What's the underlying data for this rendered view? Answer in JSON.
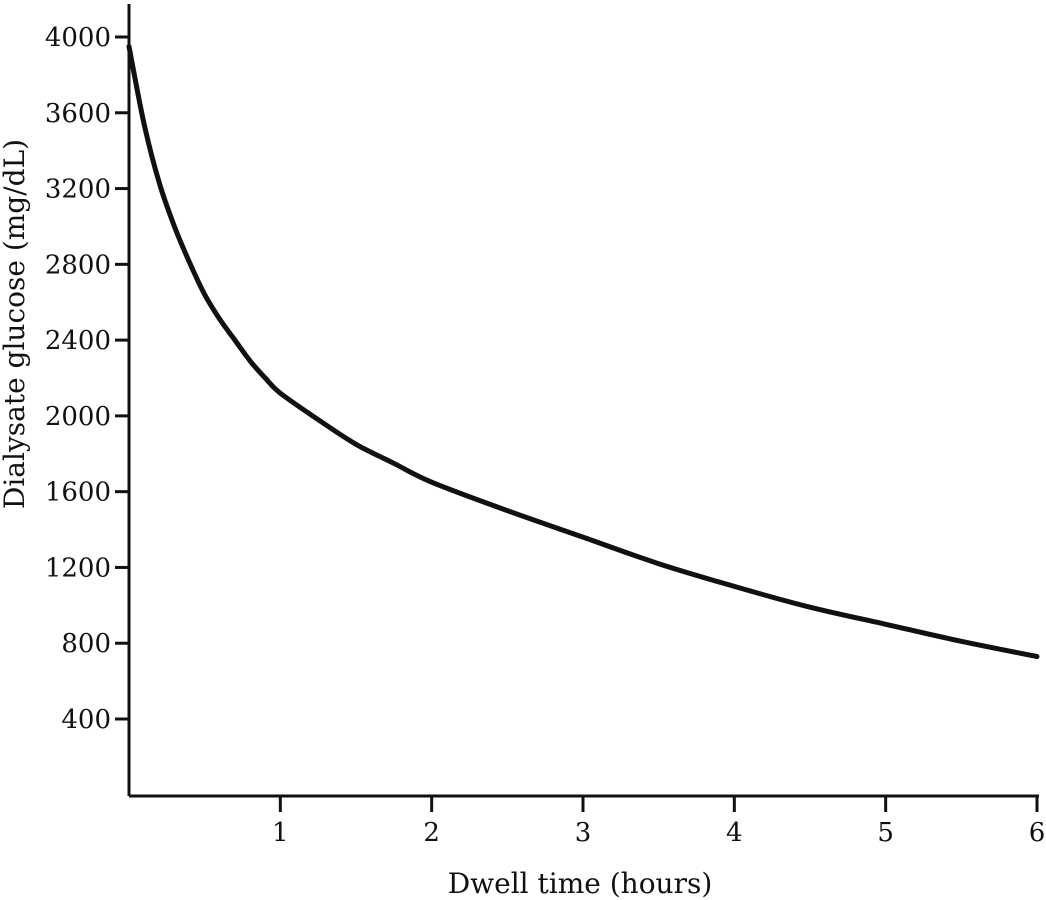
{
  "chart_data": {
    "type": "line",
    "title": "",
    "xlabel": "Dwell time (hours)",
    "ylabel": "Dialysate glucose (mg/dL)",
    "xlim": [
      0,
      6
    ],
    "ylim": [
      0,
      4200
    ],
    "xticks": [
      1,
      2,
      3,
      4,
      5,
      6
    ],
    "yticks": [
      400,
      800,
      1200,
      1600,
      2000,
      2400,
      2800,
      3200,
      3600,
      4000
    ],
    "grid": false,
    "legend": "none",
    "line_color": "#111111",
    "series": [
      {
        "x": [
          0,
          0.1,
          0.2,
          0.3,
          0.4,
          0.5,
          0.6,
          0.7,
          0.8,
          0.9,
          1.0,
          1.25,
          1.5,
          1.75,
          2.0,
          2.5,
          3.0,
          3.5,
          4.0,
          4.5,
          5.0,
          5.5,
          6.0
        ],
        "y": [
          3950,
          3540,
          3230,
          3000,
          2810,
          2640,
          2510,
          2400,
          2290,
          2200,
          2120,
          1980,
          1850,
          1750,
          1650,
          1500,
          1360,
          1220,
          1100,
          990,
          900,
          810,
          730
        ]
      }
    ]
  }
}
